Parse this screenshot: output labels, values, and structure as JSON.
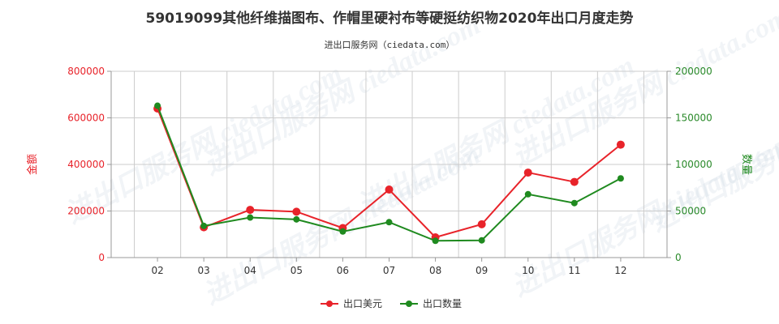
{
  "title": "59019099其他纤维描图布、作帽里硬衬布等硬挺纺织物2020年出口月度走势",
  "subtitle": "进出口服务网（ciedata.com）",
  "watermark": "进出口服务网 ciedata.com",
  "colors": {
    "value_series": "#e8232a",
    "quantity_series": "#1f8a1f",
    "grid": "#cccccc"
  },
  "chart_data": {
    "type": "line",
    "categories": [
      "02",
      "03",
      "04",
      "05",
      "06",
      "07",
      "08",
      "09",
      "10",
      "11",
      "12"
    ],
    "y_left": {
      "label": "金额",
      "ylim": [
        0,
        800000
      ],
      "ticks": [
        "0",
        "200000",
        "400000",
        "600000",
        "800000"
      ]
    },
    "y_right": {
      "label": "数量",
      "ylim": [
        0,
        200000
      ],
      "ticks": [
        "0",
        "50000",
        "100000",
        "150000",
        "200000"
      ]
    },
    "series": [
      {
        "name": "出口美元",
        "axis": "left",
        "values": [
          640000,
          130000,
          205000,
          197000,
          127000,
          292000,
          87000,
          143000,
          365000,
          325000,
          485000
        ]
      },
      {
        "name": "出口数量",
        "axis": "right",
        "values": [
          163000,
          34000,
          43000,
          41000,
          28000,
          38000,
          18000,
          18500,
          68000,
          58500,
          85000
        ]
      }
    ],
    "grid": true,
    "legend_position": "bottom-center"
  }
}
